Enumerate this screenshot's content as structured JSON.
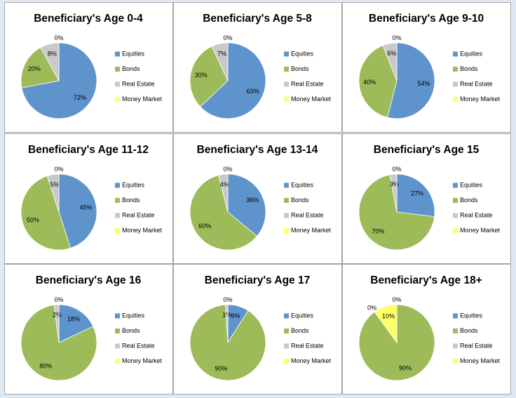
{
  "chart_data": [
    {
      "type": "pie",
      "title": "Beneficiary's Age 0-4",
      "categories": [
        "Equities",
        "Bonds",
        "Real Estate",
        "Money Market"
      ],
      "values": [
        72,
        20,
        8,
        0
      ],
      "value_labels": [
        "72%",
        "20%",
        "8%",
        "0%"
      ],
      "colors": [
        "#5f93cc",
        "#9dbb59",
        "#c9c9c9",
        "#ffff66"
      ]
    },
    {
      "type": "pie",
      "title": "Beneficiary's Age 5-8",
      "categories": [
        "Equities",
        "Bonds",
        "Real Estate",
        "Money Market"
      ],
      "values": [
        63,
        30,
        7,
        0
      ],
      "value_labels": [
        "63%",
        "30%",
        "7%",
        "0%"
      ],
      "colors": [
        "#5f93cc",
        "#9dbb59",
        "#c9c9c9",
        "#ffff66"
      ]
    },
    {
      "type": "pie",
      "title": "Beneficiary's Age 9-10",
      "categories": [
        "Equities",
        "Bonds",
        "Real Estate",
        "Money Market"
      ],
      "values": [
        54,
        40,
        6,
        0
      ],
      "value_labels": [
        "54%",
        "40%",
        "6%",
        "0%"
      ],
      "colors": [
        "#5f93cc",
        "#9dbb59",
        "#c9c9c9",
        "#ffff66"
      ]
    },
    {
      "type": "pie",
      "title": "Beneficiary's Age 11-12",
      "categories": [
        "Equities",
        "Bonds",
        "Real Estate",
        "Money Market"
      ],
      "values": [
        45,
        50,
        5,
        0
      ],
      "value_labels": [
        "45%",
        "50%",
        "5%",
        "0%"
      ],
      "colors": [
        "#5f93cc",
        "#9dbb59",
        "#c9c9c9",
        "#ffff66"
      ]
    },
    {
      "type": "pie",
      "title": "Beneficiary's Age 13-14",
      "categories": [
        "Equities",
        "Bonds",
        "Real Estate",
        "Money Market"
      ],
      "values": [
        36,
        60,
        4,
        0
      ],
      "value_labels": [
        "36%",
        "60%",
        "4%",
        "0%"
      ],
      "colors": [
        "#5f93cc",
        "#9dbb59",
        "#c9c9c9",
        "#ffff66"
      ]
    },
    {
      "type": "pie",
      "title": "Beneficiary's Age 15",
      "categories": [
        "Equities",
        "Bonds",
        "Real Estate",
        "Money Market"
      ],
      "values": [
        27,
        70,
        3,
        0
      ],
      "value_labels": [
        "27%",
        "70%",
        "3%",
        "0%"
      ],
      "colors": [
        "#5f93cc",
        "#9dbb59",
        "#c9c9c9",
        "#ffff66"
      ]
    },
    {
      "type": "pie",
      "title": "Beneficiary's Age 16",
      "categories": [
        "Equities",
        "Bonds",
        "Real Estate",
        "Money Market"
      ],
      "values": [
        18,
        80,
        2,
        0
      ],
      "value_labels": [
        "18%",
        "80%",
        "2%",
        "0%"
      ],
      "colors": [
        "#5f93cc",
        "#9dbb59",
        "#c9c9c9",
        "#ffff66"
      ]
    },
    {
      "type": "pie",
      "title": "Beneficiary's Age 17",
      "categories": [
        "Equities",
        "Bonds",
        "Real Estate",
        "Money Market"
      ],
      "values": [
        9,
        90,
        1,
        0
      ],
      "value_labels": [
        "9%",
        "90%",
        "1%",
        "0%"
      ],
      "colors": [
        "#5f93cc",
        "#9dbb59",
        "#c9c9c9",
        "#ffff66"
      ]
    },
    {
      "type": "pie",
      "title": "Beneficiary's Age 18+",
      "categories": [
        "Equities",
        "Bonds",
        "Real Estate",
        "Money Market"
      ],
      "values": [
        0,
        90,
        0,
        10
      ],
      "value_labels": [
        "0%",
        "90%",
        "0%",
        "10%"
      ],
      "colors": [
        "#5f93cc",
        "#9dbb59",
        "#c9c9c9",
        "#ffff66"
      ]
    }
  ]
}
